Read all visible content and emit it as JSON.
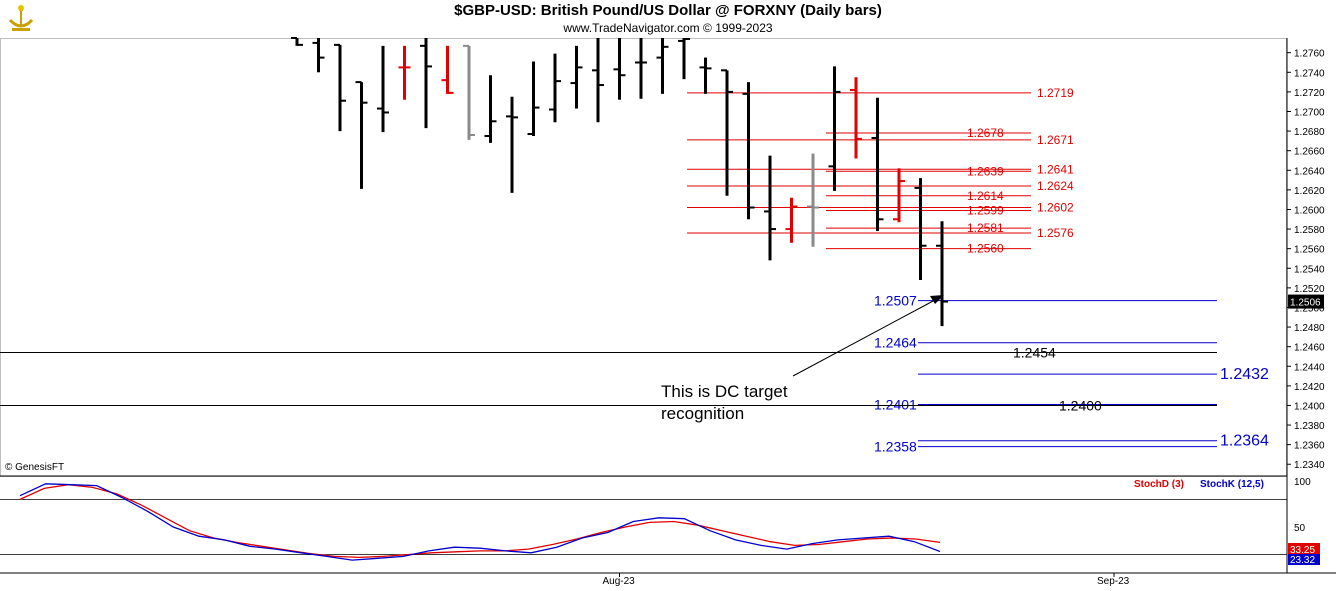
{
  "header": {
    "title": "$GBP-USD:  British Pound/US Dollar @ FORXNY  (Daily bars)",
    "subtitle": "www.TradeNavigator.com © 1999-2023"
  },
  "copyright": "© GenesisFT",
  "annotation": {
    "line1": "This is DC target",
    "line2": "recognition"
  },
  "colors": {
    "up_bar": "#000000",
    "down_bar": "#e00000",
    "neutral_bar": "#8a8a8a",
    "red_level": "#e00000",
    "blue_level": "#0000cc",
    "black_level": "#000000",
    "stochD": "#e00000",
    "stochK": "#0000cc"
  },
  "price_axis": {
    "min": 1.233,
    "max": 1.277,
    "ticks": [
      "1.2760",
      "1.2740",
      "1.2720",
      "1.2700",
      "1.2680",
      "1.2660",
      "1.2640",
      "1.2620",
      "1.2600",
      "1.2580",
      "1.2560",
      "1.2540",
      "1.2520",
      "1.2500",
      "1.2480",
      "1.2460",
      "1.2440",
      "1.2420",
      "1.2400",
      "1.2380",
      "1.2360",
      "1.2340"
    ],
    "current_price_label": "1.2506"
  },
  "time_axis": {
    "labels": [
      {
        "text": "Aug-23",
        "bar": 15
      },
      {
        "text": "Sep-23",
        "bar": 38
      }
    ]
  },
  "chart_data": {
    "type": "ohlc",
    "bars": [
      {
        "o": 1.2775,
        "h": 1.2775,
        "l": 1.2767,
        "c": 1.2768,
        "color": "black"
      },
      {
        "o": 1.277,
        "h": 1.2775,
        "l": 1.274,
        "c": 1.2755,
        "color": "black"
      },
      {
        "o": 1.2768,
        "h": 1.2768,
        "l": 1.268,
        "c": 1.2711,
        "color": "black"
      },
      {
        "o": 1.273,
        "h": 1.273,
        "l": 1.2621,
        "c": 1.2709,
        "color": "black"
      },
      {
        "o": 1.2703,
        "h": 1.2767,
        "l": 1.2679,
        "c": 1.2699,
        "color": "black"
      },
      {
        "o": 1.2745,
        "h": 1.2767,
        "l": 1.2712,
        "c": 1.2745,
        "color": "red"
      },
      {
        "o": 1.2767,
        "h": 1.2775,
        "l": 1.2683,
        "c": 1.2746,
        "color": "black"
      },
      {
        "o": 1.2732,
        "h": 1.2767,
        "l": 1.2718,
        "c": 1.2719,
        "color": "red"
      },
      {
        "o": 1.2767,
        "h": 1.2767,
        "l": 1.2671,
        "c": 1.2676,
        "color": "gray"
      },
      {
        "o": 1.2675,
        "h": 1.2737,
        "l": 1.2668,
        "c": 1.269,
        "color": "black"
      },
      {
        "o": 1.2695,
        "h": 1.2715,
        "l": 1.2617,
        "c": 1.2694,
        "color": "black"
      },
      {
        "o": 1.2677,
        "h": 1.2751,
        "l": 1.2675,
        "c": 1.2704,
        "color": "black"
      },
      {
        "o": 1.2702,
        "h": 1.2759,
        "l": 1.2689,
        "c": 1.2731,
        "color": "black"
      },
      {
        "o": 1.2729,
        "h": 1.2767,
        "l": 1.2703,
        "c": 1.2745,
        "color": "black"
      },
      {
        "o": 1.2742,
        "h": 1.2775,
        "l": 1.2689,
        "c": 1.2727,
        "color": "black"
      },
      {
        "o": 1.2743,
        "h": 1.2775,
        "l": 1.2712,
        "c": 1.2737,
        "color": "black"
      },
      {
        "o": 1.275,
        "h": 1.2775,
        "l": 1.2713,
        "c": 1.275,
        "color": "black"
      },
      {
        "o": 1.2755,
        "h": 1.2775,
        "l": 1.2718,
        "c": 1.2766,
        "color": "black"
      },
      {
        "o": 1.2772,
        "h": 1.2775,
        "l": 1.2733,
        "c": 1.2774,
        "color": "black"
      },
      {
        "o": 1.2745,
        "h": 1.2755,
        "l": 1.2718,
        "c": 1.2744,
        "color": "black"
      },
      {
        "o": 1.2742,
        "h": 1.2742,
        "l": 1.2614,
        "c": 1.272,
        "color": "black"
      },
      {
        "o": 1.2718,
        "h": 1.273,
        "l": 1.259,
        "c": 1.2602,
        "color": "black"
      },
      {
        "o": 1.2598,
        "h": 1.2655,
        "l": 1.2548,
        "c": 1.258,
        "color": "black"
      },
      {
        "o": 1.258,
        "h": 1.2612,
        "l": 1.2566,
        "c": 1.2603,
        "color": "red"
      },
      {
        "o": 1.2603,
        "h": 1.2657,
        "l": 1.2562,
        "c": 1.2602,
        "color": "gray"
      },
      {
        "o": 1.2644,
        "h": 1.2746,
        "l": 1.2619,
        "c": 1.272,
        "color": "black"
      },
      {
        "o": 1.2722,
        "h": 1.2735,
        "l": 1.2652,
        "c": 1.2672,
        "color": "red"
      },
      {
        "o": 1.2673,
        "h": 1.2714,
        "l": 1.2578,
        "c": 1.259,
        "color": "black"
      },
      {
        "o": 1.259,
        "h": 1.2642,
        "l": 1.2587,
        "c": 1.2629,
        "color": "red"
      },
      {
        "o": 1.2622,
        "h": 1.2632,
        "l": 1.2528,
        "c": 1.2563,
        "color": "black"
      },
      {
        "o": 1.2563,
        "h": 1.2588,
        "l": 1.2481,
        "c": 1.2506,
        "color": "black"
      }
    ],
    "levels": [
      {
        "value": 1.2719,
        "label": "1.2719",
        "color": "red",
        "from": 0.705,
        "to": 0.775,
        "label_x": 0.775
      },
      {
        "value": 1.2678,
        "label": "1.2678",
        "color": "red",
        "from": 0.826,
        "to": 0.776,
        "label_x": 0.726
      },
      {
        "value": 1.2671,
        "label": "1.2671",
        "color": "red",
        "from": 0.705,
        "to": 0.775,
        "label_x": 0.775
      },
      {
        "value": 1.2641,
        "label": "1.2641",
        "color": "red",
        "from": 0.705,
        "to": 0.775,
        "label_x": 0.775
      },
      {
        "value": 1.2639,
        "label": "1.2639",
        "color": "red",
        "from": 0.826,
        "to": 0.776,
        "label_x": 0.726
      },
      {
        "value": 1.2624,
        "label": "1.2624",
        "color": "red",
        "from": 0.705,
        "to": 0.775,
        "label_x": 0.775
      },
      {
        "value": 1.2614,
        "label": "1.2614",
        "color": "red",
        "from": 0.826,
        "to": 0.776,
        "label_x": 0.726
      },
      {
        "value": 1.2602,
        "label": "1.2602",
        "color": "red",
        "from": 0.705,
        "to": 0.775,
        "label_x": 0.775
      },
      {
        "value": 1.2599,
        "label": "1.2599",
        "color": "red",
        "from": 0.826,
        "to": 0.776,
        "label_x": 0.726
      },
      {
        "value": 1.2581,
        "label": "1.2581",
        "color": "red",
        "from": 0.826,
        "to": 0.776,
        "label_x": 0.726
      },
      {
        "value": 1.2576,
        "label": "1.2576",
        "color": "red",
        "from": 0.705,
        "to": 0.775,
        "label_x": 0.775
      },
      {
        "value": 1.256,
        "label": "1.2560",
        "color": "red",
        "from": 0.826,
        "to": 0.776,
        "label_x": 0.726
      },
      {
        "value": 1.2507,
        "label": "1.2507",
        "color": "blue",
        "label_side": "left"
      },
      {
        "value": 1.2464,
        "label": "1.2464",
        "color": "blue",
        "label_side": "left"
      },
      {
        "value": 1.2454,
        "label": "1.2454",
        "color": "black",
        "label_side": "right_mid"
      },
      {
        "value": 1.2432,
        "label": "1.2432",
        "color": "blue",
        "label_side": "right"
      },
      {
        "value": 1.2401,
        "label": "1.2401",
        "color": "blue",
        "label_side": "left"
      },
      {
        "value": 1.24,
        "label": "1.2400",
        "color": "black",
        "label_side": "right_mid"
      },
      {
        "value": 1.2364,
        "label": "1.2364",
        "color": "blue",
        "label_side": "right"
      },
      {
        "value": 1.2358,
        "label": "1.2358",
        "color": "blue",
        "label_side": "left"
      }
    ],
    "stochastic": {
      "ylim": [
        0,
        100
      ],
      "ticks": [
        "100",
        "50"
      ],
      "stochD_label": "StochD (3)",
      "stochK_label": "StochK (12,5)",
      "stochD_last": "33.25",
      "stochK_last": "23.32",
      "stochD": [
        80,
        92,
        96,
        93,
        86,
        74,
        60,
        46,
        38,
        33,
        29,
        25,
        21,
        18,
        17,
        18,
        20,
        22,
        23,
        24,
        24,
        26,
        31,
        37,
        44,
        50,
        55,
        56,
        52,
        46,
        40,
        34,
        30,
        31,
        34,
        37,
        38,
        37,
        33.25
      ],
      "stochK": [
        84,
        97,
        96,
        95,
        82,
        67,
        50,
        40,
        36,
        29,
        26,
        22,
        18,
        14,
        16,
        18,
        24,
        28,
        27,
        24,
        22,
        28,
        38,
        44,
        56,
        60,
        59,
        46,
        36,
        30,
        26,
        32,
        36,
        38,
        40,
        34,
        23.32
      ]
    }
  }
}
